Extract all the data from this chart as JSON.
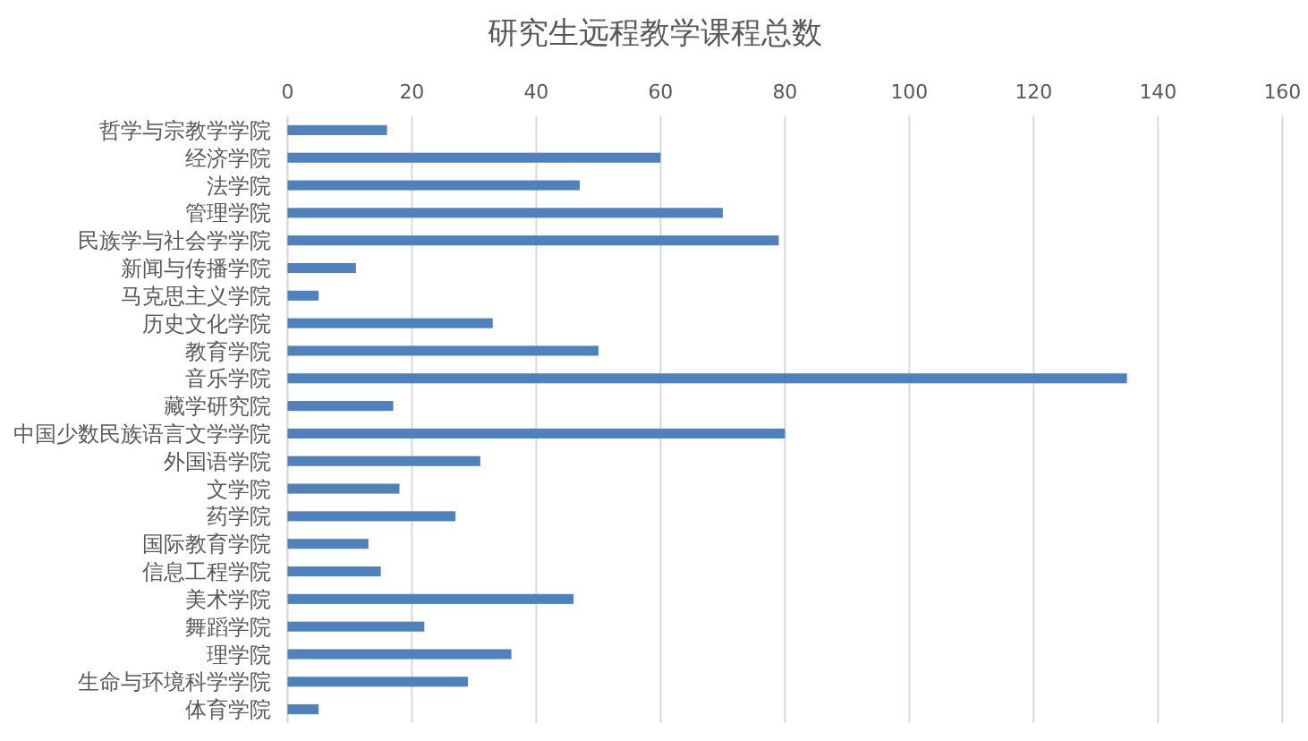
{
  "chart_data": {
    "type": "bar",
    "orientation": "horizontal",
    "title": "研究生远程教学课程总数",
    "categories": [
      "哲学与宗教学学院",
      "经济学院",
      "法学院",
      "管理学院",
      "民族学与社会学学院",
      "新闻与传播学院",
      "马克思主义学院",
      "历史文化学院",
      "教育学院",
      "音乐学院",
      "藏学研究院",
      "中国少数民族语言文学学院",
      "外国语学院",
      "文学院",
      "药学院",
      "国际教育学院",
      "信息工程学院",
      "美术学院",
      "舞蹈学院",
      "理学院",
      "生命与环境科学学院",
      "体育学院"
    ],
    "values": [
      16,
      60,
      47,
      70,
      79,
      11,
      5,
      33,
      50,
      135,
      17,
      80,
      31,
      18,
      27,
      13,
      15,
      46,
      22,
      36,
      29,
      5
    ],
    "color": "#4f81bd",
    "xlim": [
      0,
      160
    ],
    "xticks": [
      0,
      20,
      40,
      60,
      80,
      100,
      120,
      140,
      160
    ],
    "grid": "x"
  }
}
